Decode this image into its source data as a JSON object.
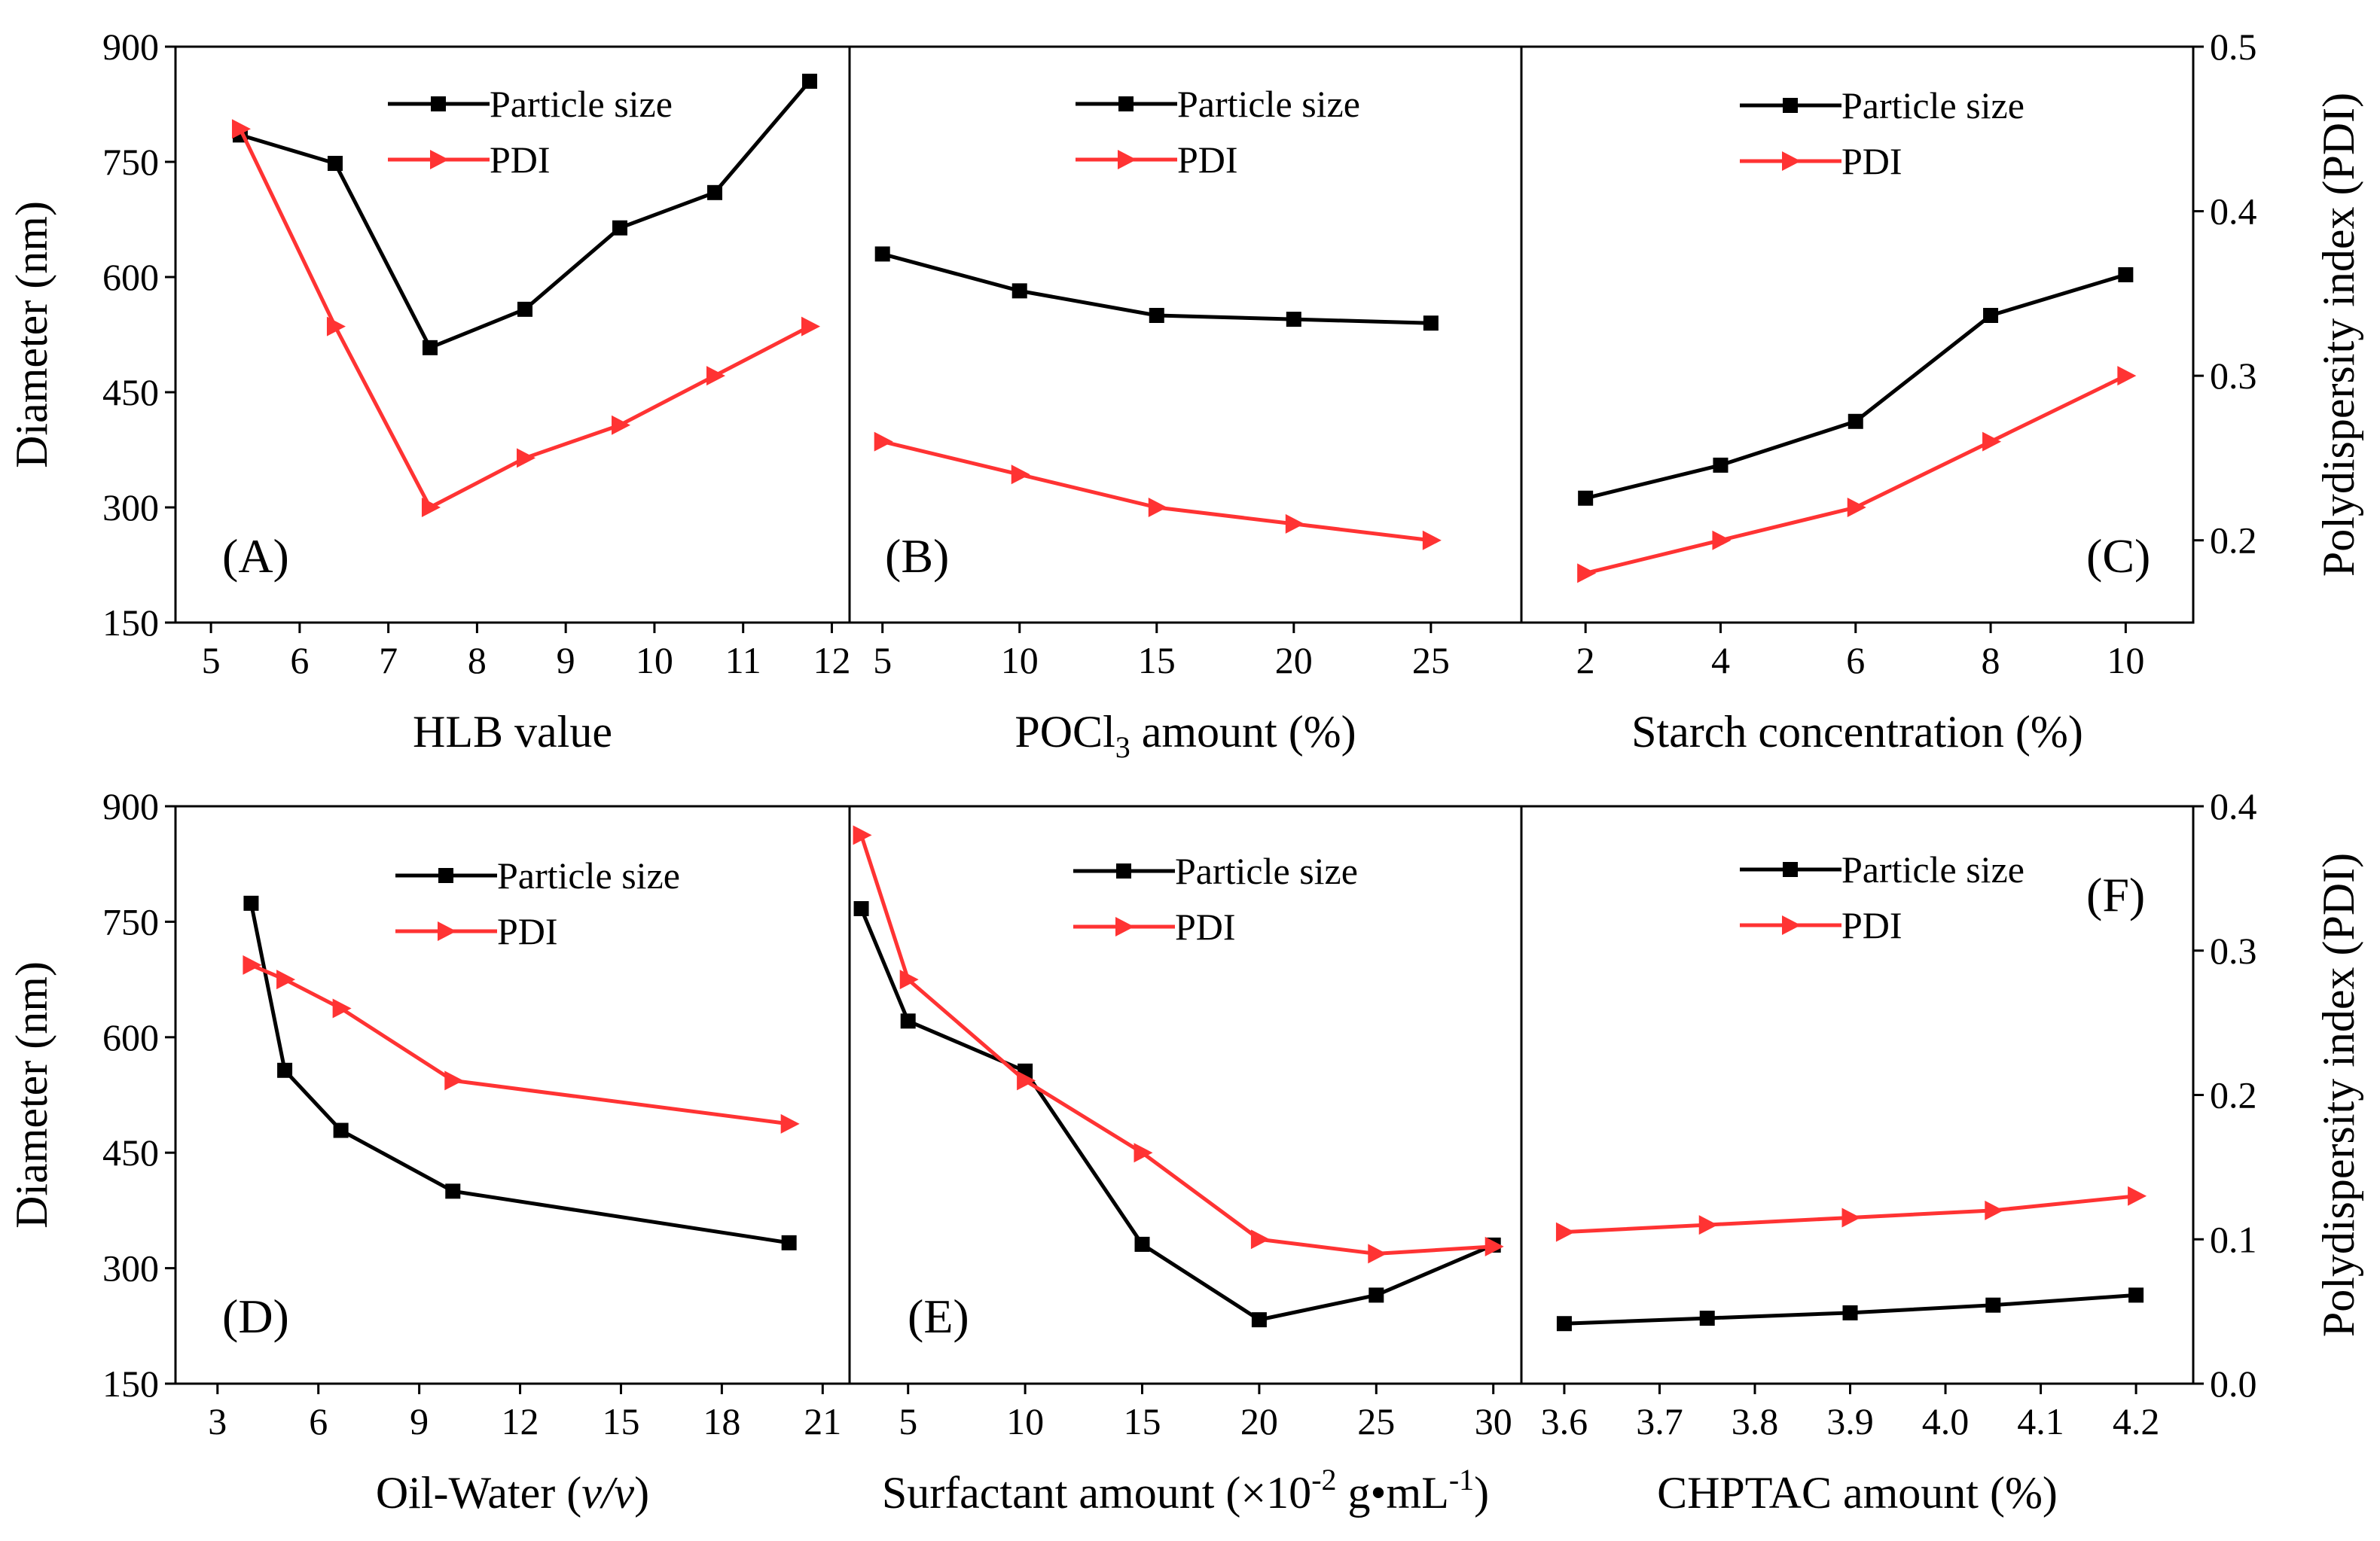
{
  "colors": {
    "particle": "#000000",
    "pdi": "#ff3333",
    "axis": "#000000"
  },
  "rows": [
    {
      "left_axis": {
        "label": "Diameter (nm)",
        "ticks": [
          150,
          300,
          450,
          600,
          750,
          900
        ]
      },
      "right_axis": {
        "label": "Polydispersity index (PDI)",
        "ticks": [
          "0.2",
          "0.3",
          "0.4",
          "0.5"
        ]
      }
    },
    {
      "left_axis": {
        "label": "Diameter (nm)",
        "ticks": [
          150,
          300,
          450,
          600,
          750,
          900
        ]
      },
      "right_axis": {
        "label": "Polydispersity index (PDI)",
        "ticks": [
          "0.0",
          "0.1",
          "0.2",
          "0.3",
          "0.4"
        ]
      }
    }
  ],
  "chart_data": [
    {
      "id": "A",
      "type": "line",
      "panel_label": "(A)",
      "xlabel": "HLB value",
      "x_ticks": [
        "5",
        "6",
        "7",
        "8",
        "9",
        "10",
        "11",
        "12"
      ],
      "x_tick_values": [
        5,
        6,
        7,
        8,
        9,
        10,
        11,
        12
      ],
      "xlim": [
        4.6,
        12.2
      ],
      "ylim_left": [
        150,
        900
      ],
      "ylim_right": [
        0.15,
        0.5
      ],
      "legend": [
        "Particle size",
        "PDI"
      ],
      "series": [
        {
          "name": "Particle size",
          "axis": "left",
          "marker": "square",
          "x": [
            5.33,
            6.4,
            7.47,
            8.54,
            9.61,
            10.68,
            11.75
          ],
          "y": [
            785,
            748,
            508,
            558,
            664,
            710,
            855
          ]
        },
        {
          "name": "PDI",
          "axis": "right",
          "marker": "triangle",
          "x": [
            5.33,
            6.4,
            7.47,
            8.54,
            9.61,
            10.68,
            11.75
          ],
          "y": [
            0.45,
            0.33,
            0.22,
            0.25,
            0.27,
            0.3,
            0.33
          ]
        }
      ]
    },
    {
      "id": "B",
      "type": "line",
      "panel_label": "(B)",
      "xlabel": "POCl3 amount (%)",
      "x_ticks": [
        "5",
        "10",
        "15",
        "20",
        "25"
      ],
      "x_tick_values": [
        5,
        10,
        15,
        20,
        25
      ],
      "xlim": [
        3.8,
        28.3
      ],
      "ylim_left": [
        150,
        900
      ],
      "ylim_right": [
        0.15,
        0.5
      ],
      "legend": [
        "Particle size",
        "PDI"
      ],
      "series": [
        {
          "name": "Particle size",
          "axis": "left",
          "marker": "square",
          "x": [
            5,
            10,
            15,
            20,
            25
          ],
          "y": [
            630,
            582,
            550,
            545,
            540
          ]
        },
        {
          "name": "PDI",
          "axis": "right",
          "marker": "triangle",
          "x": [
            5,
            10,
            15,
            20,
            25
          ],
          "y": [
            0.26,
            0.24,
            0.22,
            0.21,
            0.2
          ]
        }
      ]
    },
    {
      "id": "C",
      "type": "line",
      "panel_label": "(C)",
      "xlabel": "Starch concentration (%)",
      "x_ticks": [
        "2",
        "4",
        "6",
        "8",
        "10"
      ],
      "x_tick_values": [
        2,
        4,
        6,
        8,
        10
      ],
      "xlim": [
        1.05,
        11.0
      ],
      "ylim_left": [
        150,
        900
      ],
      "ylim_right": [
        0.15,
        0.5
      ],
      "legend": [
        "Particle size",
        "PDI"
      ],
      "series": [
        {
          "name": "Particle size",
          "axis": "left",
          "marker": "square",
          "x": [
            2,
            4,
            6,
            8,
            10
          ],
          "y": [
            312,
            355,
            412,
            550,
            603
          ]
        },
        {
          "name": "PDI",
          "axis": "right",
          "marker": "triangle",
          "x": [
            2,
            4,
            6,
            8,
            10
          ],
          "y": [
            0.18,
            0.2,
            0.22,
            0.26,
            0.3
          ]
        }
      ]
    },
    {
      "id": "D",
      "type": "line",
      "panel_label": "(D)",
      "xlabel": "Oil-Water (v/v)",
      "x_ticks": [
        "3",
        "6",
        "9",
        "12",
        "15",
        "18",
        "21"
      ],
      "x_tick_values": [
        3,
        6,
        9,
        12,
        15,
        18,
        21
      ],
      "xlim": [
        1.75,
        21.8
      ],
      "ylim_left": [
        150,
        900
      ],
      "ylim_right": [
        0.0,
        0.4
      ],
      "legend": [
        "Particle size",
        "PDI"
      ],
      "series": [
        {
          "name": "Particle size",
          "axis": "left",
          "marker": "square",
          "x": [
            4,
            5,
            6.67,
            10,
            20
          ],
          "y": [
            774,
            557,
            479,
            400,
            333
          ]
        },
        {
          "name": "PDI",
          "axis": "right",
          "marker": "triangle",
          "x": [
            4,
            5,
            6.67,
            10,
            20
          ],
          "y": [
            0.29,
            0.28,
            0.26,
            0.21,
            0.18
          ]
        }
      ]
    },
    {
      "id": "E",
      "type": "line",
      "panel_label": "(E)",
      "xlabel": "Surfactant amount (×10-2 g•mL-1)",
      "x_ticks": [
        "5",
        "10",
        "15",
        "20",
        "25",
        "30"
      ],
      "x_tick_values": [
        5,
        10,
        15,
        20,
        25,
        30
      ],
      "xlim": [
        2.5,
        31.2
      ],
      "ylim_left": [
        150,
        900
      ],
      "ylim_right": [
        0.0,
        0.4
      ],
      "legend": [
        "Particle size",
        "PDI"
      ],
      "series": [
        {
          "name": "Particle size",
          "axis": "left",
          "marker": "square",
          "x": [
            3,
            5,
            10,
            15,
            20,
            25,
            30
          ],
          "y": [
            767,
            621,
            556,
            331,
            233,
            265,
            330
          ]
        },
        {
          "name": "PDI",
          "axis": "right",
          "marker": "triangle",
          "x": [
            3,
            5,
            10,
            15,
            20,
            25,
            30
          ],
          "y": [
            0.38,
            0.28,
            0.21,
            0.16,
            0.1,
            0.09,
            0.095
          ]
        }
      ]
    },
    {
      "id": "F",
      "type": "line",
      "panel_label": "(F)",
      "xlabel": "CHPTAC amount (%)",
      "x_ticks": [
        "3.6",
        "3.7",
        "3.8",
        "3.9",
        "4.0",
        "4.1",
        "4.2"
      ],
      "x_tick_values": [
        3.6,
        3.7,
        3.8,
        3.9,
        4.0,
        4.1,
        4.2
      ],
      "xlim": [
        3.555,
        4.26
      ],
      "ylim_left": [
        150,
        900
      ],
      "ylim_right": [
        0.0,
        0.4
      ],
      "legend": [
        "Particle size",
        "PDI"
      ],
      "series": [
        {
          "name": "Particle size",
          "axis": "left",
          "marker": "square",
          "x": [
            3.6,
            3.75,
            3.9,
            4.05,
            4.2
          ],
          "y": [
            228,
            235,
            242,
            252,
            265
          ]
        },
        {
          "name": "PDI",
          "axis": "right",
          "marker": "triangle",
          "x": [
            3.6,
            3.75,
            3.9,
            4.05,
            4.2
          ],
          "y": [
            0.105,
            0.11,
            0.115,
            0.12,
            0.13
          ]
        }
      ]
    }
  ]
}
